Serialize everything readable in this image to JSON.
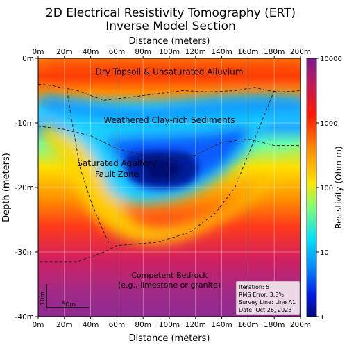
{
  "chart_data": {
    "type": "heatmap",
    "title": "2D Electrical Resistivity Tomography (ERT)",
    "subtitle": "Inverse Model Section",
    "xlabel": "Distance (meters)",
    "ylabel": "Depth (meters)",
    "xlim": [
      0,
      200
    ],
    "ylim": [
      -40,
      0
    ],
    "x_ticks": [
      {
        "value": 0,
        "label": "0m"
      },
      {
        "value": 20,
        "label": "20m"
      },
      {
        "value": 40,
        "label": "40m"
      },
      {
        "value": 60,
        "label": "60m"
      },
      {
        "value": 80,
        "label": "80m"
      },
      {
        "value": 100,
        "label": "100m"
      },
      {
        "value": 120,
        "label": "120m"
      },
      {
        "value": 140,
        "label": "140m"
      },
      {
        "value": 160,
        "label": "160m"
      },
      {
        "value": 180,
        "label": "180m"
      },
      {
        "value": 200,
        "label": "200m"
      }
    ],
    "y_ticks": [
      {
        "value": 0,
        "label": "0m"
      },
      {
        "value": -10,
        "label": "-10m"
      },
      {
        "value": -20,
        "label": "-20m"
      },
      {
        "value": -30,
        "label": "-30m"
      },
      {
        "value": -40,
        "label": "-40m"
      }
    ],
    "grid": true,
    "colorbar": {
      "label": "Resistivity (Ohm-m)",
      "scale": "log",
      "range": [
        1,
        10000
      ],
      "colormap": "jet",
      "ticks": [
        {
          "value": 10000,
          "label": "10000"
        },
        {
          "value": 1000,
          "label": "1000"
        },
        {
          "value": 100,
          "label": "100"
        },
        {
          "value": 10,
          "label": "10"
        },
        {
          "value": 1,
          "label": "1"
        }
      ]
    },
    "layers": [
      {
        "label": "Dry Topsoil & Unsaturated Alluvium",
        "x": 100,
        "depth": -2.5,
        "resistivity": 2500
      },
      {
        "label": "Weathered Clay-rich Sediments",
        "x": 100,
        "depth": -10,
        "resistivity": 15
      },
      {
        "label": "Saturated Aquifer / Fault Zone",
        "x": 60,
        "depth": -17,
        "resistivity": 3
      },
      {
        "label": "Competent Bedrock (e.g., limestone or granite)",
        "x": 100,
        "depth": -34,
        "resistivity": 4500
      }
    ],
    "boundaries": [
      {
        "name": "topsoil-base",
        "points": [
          [
            0,
            -4
          ],
          [
            10,
            -4.2
          ],
          [
            30,
            -5
          ],
          [
            50,
            -6.5
          ],
          [
            70,
            -6
          ],
          [
            90,
            -5.5
          ],
          [
            110,
            -5
          ],
          [
            130,
            -5.2
          ],
          [
            150,
            -5
          ],
          [
            165,
            -4.5
          ],
          [
            175,
            -5
          ],
          [
            185,
            -5.2
          ],
          [
            200,
            -5
          ]
        ]
      },
      {
        "name": "clay-base",
        "points": [
          [
            0,
            -10.5
          ],
          [
            20,
            -11
          ],
          [
            40,
            -12
          ],
          [
            60,
            -14
          ],
          [
            80,
            -15
          ],
          [
            100,
            -15.5
          ],
          [
            120,
            -15
          ],
          [
            140,
            -13
          ],
          [
            160,
            -12.5
          ],
          [
            180,
            -13.5
          ],
          [
            200,
            -13.5
          ]
        ]
      },
      {
        "name": "fault-left",
        "points": [
          [
            22,
            -5
          ],
          [
            26,
            -10
          ],
          [
            32,
            -17
          ],
          [
            40,
            -22
          ],
          [
            48,
            -26
          ],
          [
            55,
            -29
          ]
        ]
      },
      {
        "name": "fault-right",
        "points": [
          [
            180,
            -5
          ],
          [
            170,
            -10
          ],
          [
            160,
            -15
          ],
          [
            150,
            -20
          ],
          [
            135,
            -24
          ],
          [
            115,
            -27
          ],
          [
            90,
            -28.5
          ],
          [
            60,
            -29
          ],
          [
            50,
            -30
          ],
          [
            30,
            -31.5
          ],
          [
            0,
            -31.5
          ]
        ]
      }
    ],
    "scale_bar": {
      "vertical_label": "10m",
      "horizontal_label": "50m"
    },
    "info_box": [
      "Iteration: 5",
      "RMS Error: 3.8%",
      "Survey Line: Line A1",
      "Date: Oct 26, 2023"
    ]
  }
}
